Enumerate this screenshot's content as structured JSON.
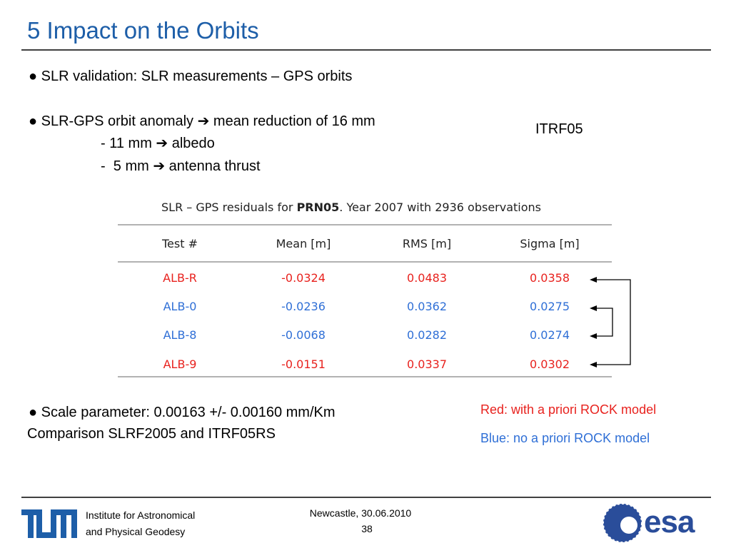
{
  "title": "5 Impact on the Orbits",
  "bullets": [
    "● SLR validation: SLR measurements – GPS orbits",
    "● SLR-GPS orbit anomaly ➔ mean reduction of 16 mm",
    "- 11 mm ➔ albedo",
    "-  5 mm ➔ antenna thrust"
  ],
  "itrf_label": "ITRF05",
  "table": {
    "caption": [
      "SLR – GPS residuals for ",
      "PRN05",
      ". Year 2007 with 2936 observations"
    ],
    "header": [
      "Test #",
      "Mean [m]",
      "RMS [m]",
      "Sigma [m]"
    ],
    "rows": [
      [
        "ALB-R",
        "-0.0324",
        "0.0483",
        "0.0358"
      ],
      [
        "ALB-0",
        "-0.0236",
        "0.0362",
        "0.0275"
      ],
      [
        "ALB-8",
        "-0.0068",
        "0.0282",
        "0.0274"
      ],
      [
        "ALB-9",
        "-0.0151",
        "0.0337",
        "0.0302"
      ]
    ],
    "row_colors": [
      "#e8221e",
      "#2f6fd6",
      "#2f6fd6",
      "#e8221e"
    ]
  },
  "scale_bullet": "● Scale parameter: 0.00163 +/- 0.00160 mm/Km",
  "comparison": "Comparison SLRF2005 and ITRF05RS",
  "legend": {
    "red": "Red: with a priori ROCK model",
    "blue": "Blue: no a priori ROCK model"
  },
  "footer": {
    "institute": [
      "Institute for Astronomical",
      "and Physical Geodesy"
    ],
    "place_date": "Newcastle, 30.06.2010",
    "page": "38",
    "esa": "esa"
  }
}
